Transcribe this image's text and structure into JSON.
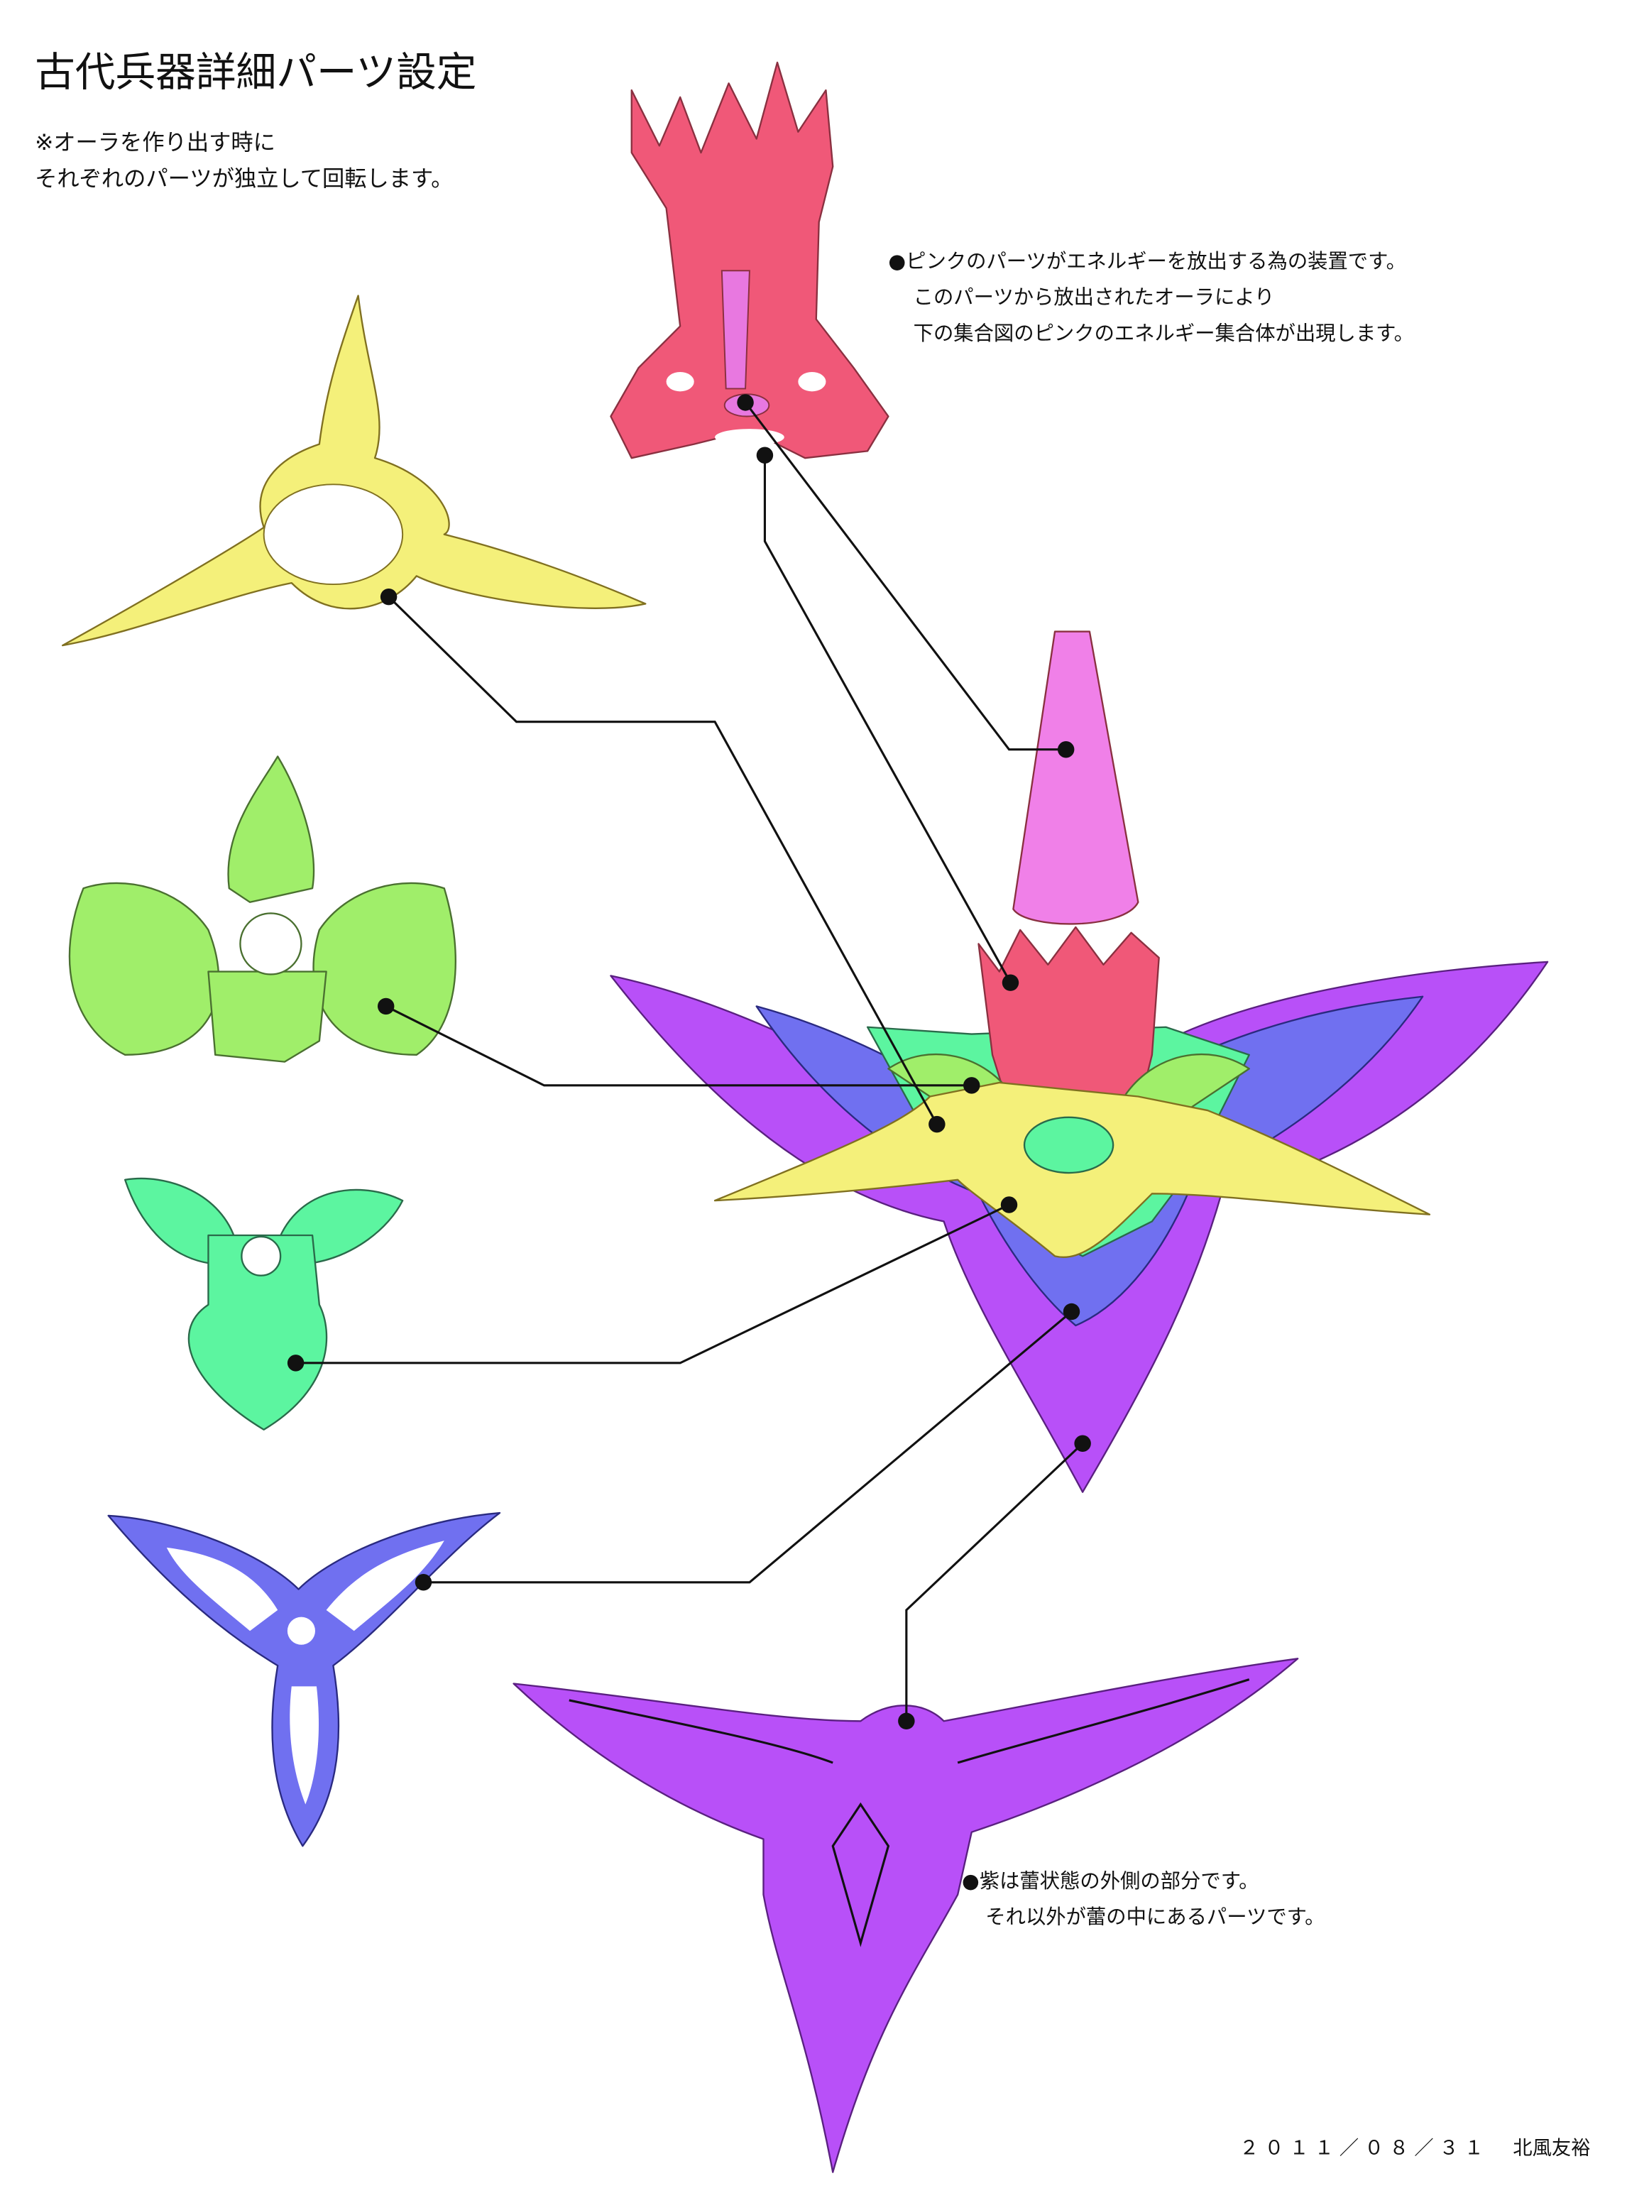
{
  "title": "古代兵器詳細パーツ設定",
  "notes": [
    "※オーラを作り出す時に",
    "それぞれのパーツが独立して回転します。"
  ],
  "pink_note": [
    "●ピンクのパーツがエネルギーを放出する為の装置です。",
    "このパーツから放出されたオーラにより",
    "下の集合図のピンクのエネルギー集合体が出現します。"
  ],
  "purple_note": [
    "●紫は蕾状態の外側の部分です。",
    "それ以外が蕾の中にあるパーツです。"
  ],
  "date": "２０１１／０８／３１",
  "author": "北風友裕"
}
